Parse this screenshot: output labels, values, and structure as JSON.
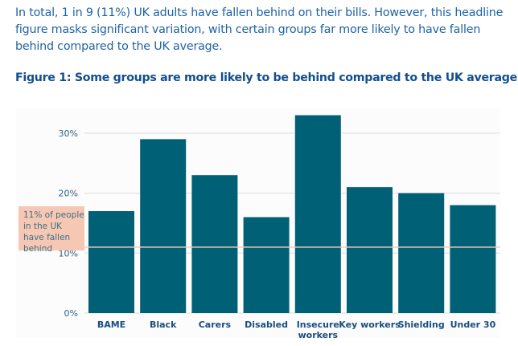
{
  "intro_text": "In total, 1 in 9 (11%) UK adults have fallen behind on their bills. However, this headline figure masks significant variation, with certain groups far more likely to have fallen behind compared to the UK average.",
  "chart_data": {
    "type": "bar",
    "title": "Figure 1: Some groups are more likely to be behind compared to the UK average",
    "categories": [
      "BAME",
      "Black",
      "Carers",
      "Disabled",
      "Insecure workers",
      "Key workers",
      "Shielding",
      "Under 30"
    ],
    "values": [
      17,
      29,
      23,
      16,
      33,
      21,
      20,
      18
    ],
    "unit": "%",
    "ylim": [
      0,
      35
    ],
    "yticks": [
      "0%",
      "10%",
      "20%",
      "30%"
    ],
    "ytick_values": [
      0,
      10,
      20,
      30
    ],
    "grid": true,
    "bar_color": "#006176",
    "reference_line": {
      "value": 11,
      "label": "11% of people in the UK have fallen behind",
      "color": "#f6c8b3"
    }
  }
}
